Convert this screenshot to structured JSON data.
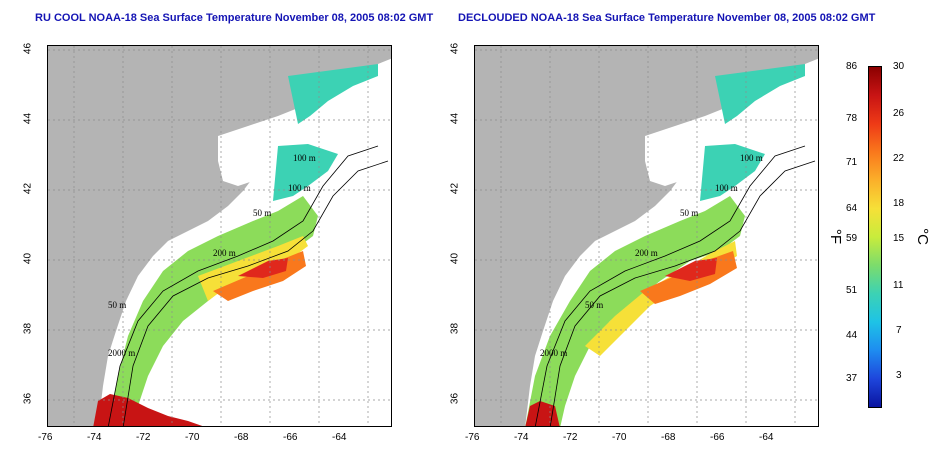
{
  "left_panel": {
    "title": "RU COOL NOAA-18 Sea Surface Temperature November 08, 2005 08:02 GMT"
  },
  "right_panel": {
    "title": "DECLOUDED NOAA-18 Sea Surface Temperature November 08, 2005 08:02 GMT"
  },
  "axes": {
    "lon_ticks": [
      "-76",
      "-74",
      "-72",
      "-70",
      "-68",
      "-66",
      "-64"
    ],
    "lat_ticks": [
      "46",
      "44",
      "42",
      "40",
      "38",
      "36"
    ]
  },
  "isobaths": [
    "100 m",
    "100 m",
    "50 m",
    "200 m",
    "50 m",
    "2000 m"
  ],
  "colorbar": {
    "fahrenheit_label": "°F",
    "celsius_label": "°C",
    "fahrenheit_ticks": [
      "86",
      "78",
      "71",
      "64",
      "59",
      "51",
      "44",
      "37"
    ],
    "celsius_ticks": [
      "30",
      "26",
      "22",
      "18",
      "15",
      "11",
      "7",
      "3"
    ],
    "colors": [
      "#8b0000",
      "#c81414",
      "#ee3a16",
      "#f9781c",
      "#fbb02a",
      "#f6e038",
      "#c8ec3c",
      "#7cdc6c",
      "#3cd2b4",
      "#1ec3e6",
      "#1e8cf0",
      "#1e46dc",
      "#0a14a0"
    ]
  },
  "colors": {
    "land": "#b4b4b4",
    "title_text": "#1414b4",
    "grid": "#8c8c8c"
  }
}
